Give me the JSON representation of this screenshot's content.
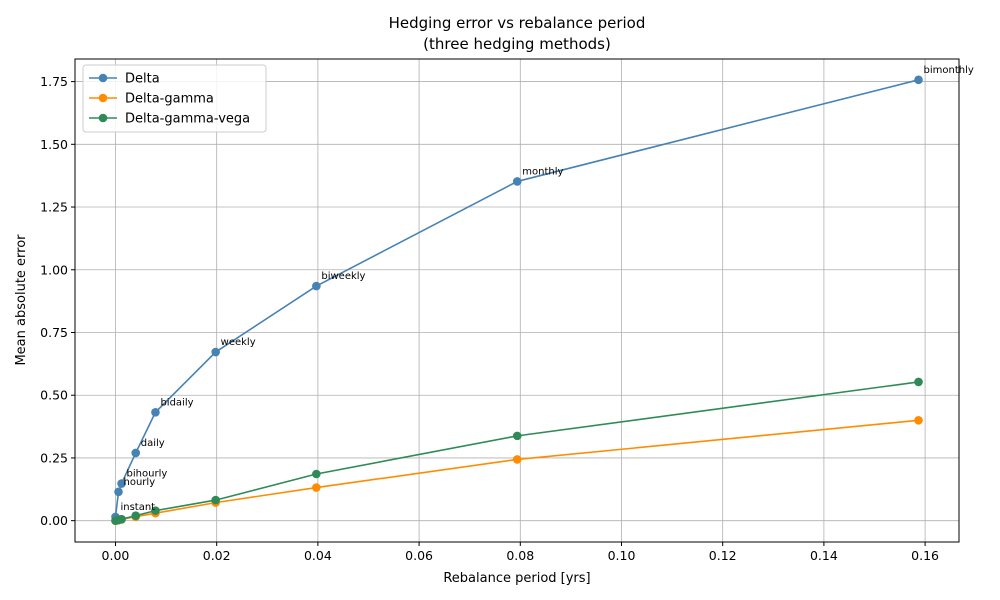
{
  "chart_data": {
    "type": "line",
    "title": [
      "Hedging error vs rebalance period",
      "(three hedging methods)"
    ],
    "xlabel": "Rebalance period [yrs]",
    "ylabel": "Mean absolute error",
    "xlim": [
      -0.008,
      0.1667
    ],
    "ylim": [
      -0.085,
      1.84
    ],
    "xticks": [
      0.0,
      0.02,
      0.04,
      0.06,
      0.08,
      0.1,
      0.12,
      0.14,
      0.16
    ],
    "xtick_labels": [
      "0.00",
      "0.02",
      "0.04",
      "0.06",
      "0.08",
      "0.10",
      "0.12",
      "0.14",
      "0.16"
    ],
    "yticks": [
      0.0,
      0.25,
      0.5,
      0.75,
      1.0,
      1.25,
      1.5,
      1.75
    ],
    "ytick_labels": [
      "0.00",
      "0.25",
      "0.50",
      "0.75",
      "1.00",
      "1.25",
      "1.50",
      "1.75"
    ],
    "grid": true,
    "legend_position": "top-left",
    "x": [
      0.0,
      0.0006,
      0.0012,
      0.004,
      0.0079,
      0.0198,
      0.0397,
      0.0794,
      0.1587
    ],
    "series": [
      {
        "name": "Delta",
        "color": "#4682b4",
        "values": [
          0.015,
          0.115,
          0.148,
          0.27,
          0.432,
          0.672,
          0.935,
          1.352,
          1.757
        ]
      },
      {
        "name": "Delta-gamma",
        "color": "#ff8c00",
        "values": [
          0.0,
          0.002,
          0.005,
          0.016,
          0.03,
          0.072,
          0.132,
          0.244,
          0.4
        ]
      },
      {
        "name": "Delta-gamma-vega",
        "color": "#2e8b57",
        "values": [
          0.0,
          0.003,
          0.006,
          0.02,
          0.04,
          0.082,
          0.186,
          0.338,
          0.553
        ]
      }
    ],
    "annotations": [
      {
        "text": "instant",
        "x": 0.0,
        "y": 0.015
      },
      {
        "text": "hourly",
        "x": 0.0006,
        "y": 0.115
      },
      {
        "text": "bihourly",
        "x": 0.0012,
        "y": 0.148
      },
      {
        "text": "daily",
        "x": 0.004,
        "y": 0.27
      },
      {
        "text": "bidaily",
        "x": 0.0079,
        "y": 0.432
      },
      {
        "text": "weekly",
        "x": 0.0198,
        "y": 0.672
      },
      {
        "text": "biweekly",
        "x": 0.0397,
        "y": 0.935
      },
      {
        "text": "monthly",
        "x": 0.0794,
        "y": 1.352
      },
      {
        "text": "bimonthly",
        "x": 0.1587,
        "y": 1.757
      }
    ]
  }
}
